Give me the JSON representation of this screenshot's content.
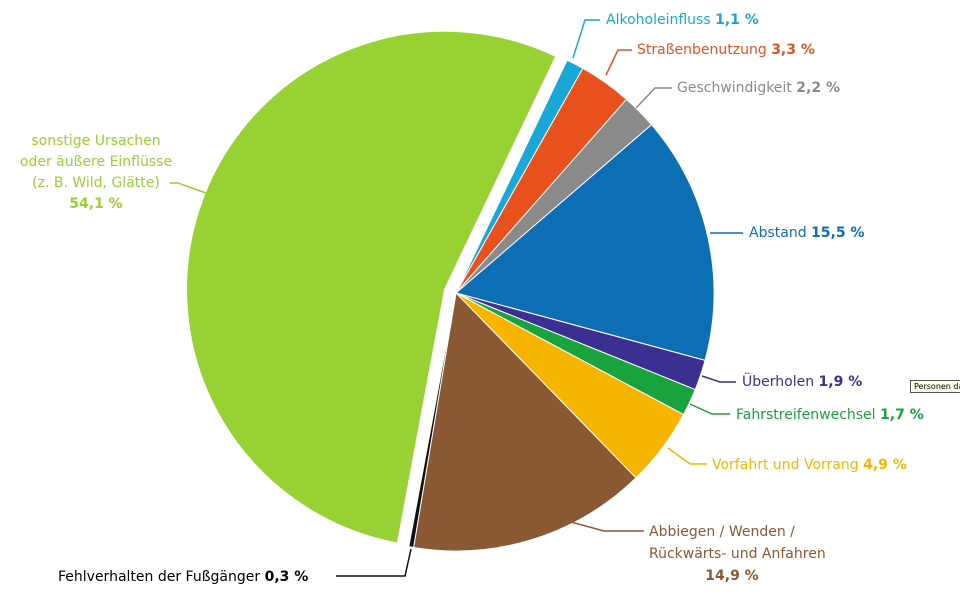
{
  "tooltip": "Personen daz",
  "chart_data": {
    "type": "pie",
    "slices": [
      {
        "key": "alkohol",
        "label": "Alkoholeinfluss",
        "value_text": "1,1 %",
        "value": 1.1,
        "color": "#1aa7d7"
      },
      {
        "key": "strasse",
        "label": "Straßenbenutzung",
        "value_text": "3,3 %",
        "value": 3.3,
        "color": "#e8501e"
      },
      {
        "key": "geschw",
        "label": "Geschwindigkeit",
        "value_text": "2,2 %",
        "value": 2.2,
        "color": "#8a8a8a"
      },
      {
        "key": "abstand",
        "label": "Abstand",
        "value_text": "15,5 %",
        "value": 15.5,
        "color": "#0c6eb4"
      },
      {
        "key": "ueberholen",
        "label": "Überholen",
        "value_text": "1,9 %",
        "value": 1.9,
        "color": "#3b2f91"
      },
      {
        "key": "fahrstreifen",
        "label": "Fahrstreifenwechsel",
        "value_text": "1,7 %",
        "value": 1.7,
        "color": "#18a33e"
      },
      {
        "key": "vorfahrt",
        "label": "Vorfahrt und Vorrang",
        "value_text": "4,9 %",
        "value": 4.9,
        "color": "#f7b500"
      },
      {
        "key": "abbiegen",
        "label_lines": [
          "Abbiegen / Wenden /",
          "Rückwärts- und Anfahren"
        ],
        "value_text": "14,9 %",
        "value": 14.9,
        "color": "#8a5832"
      },
      {
        "key": "fussgaenger",
        "label": "Fehlverhalten der Fußgänger",
        "value_text": "0,3 %",
        "value": 0.3,
        "color": "#111111"
      },
      {
        "key": "sonstige",
        "label_lines": [
          "sonstige Ursachen",
          "oder äußere Einflüsse",
          "(z. B. Wild, Glätte)"
        ],
        "value_text": "54,1 %",
        "value": 54.1,
        "color": "#97d133"
      }
    ]
  }
}
